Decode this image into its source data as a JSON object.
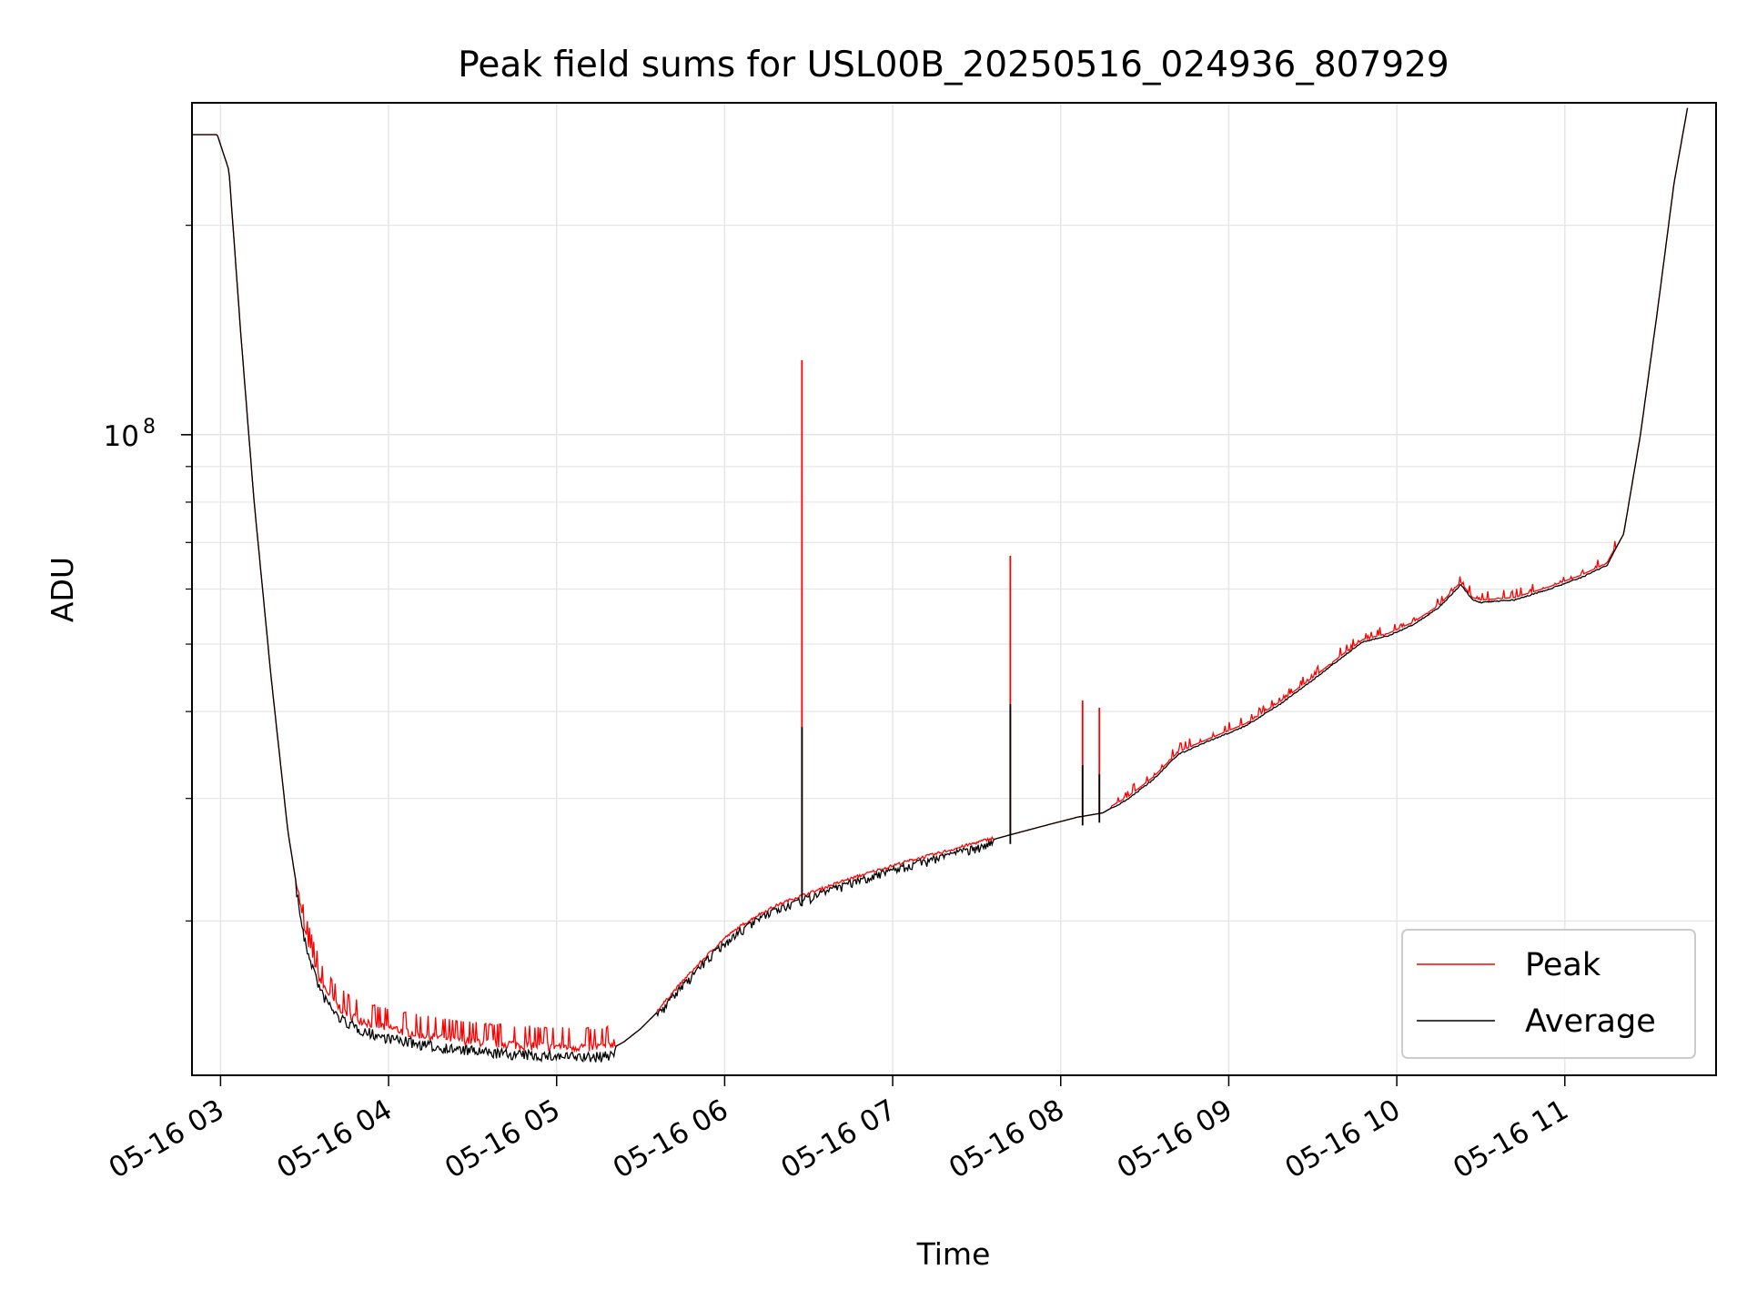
{
  "chart_data": {
    "type": "line",
    "title": "Peak field sums for USL00B_20250516_024936_807929",
    "xlabel": "Time",
    "ylabel": "ADU",
    "y_scale": "log",
    "ylim": [
      12000000,
      300000000
    ],
    "xlim_hours": [
      2.83,
      11.9
    ],
    "grid": true,
    "legend_position": "lower-right",
    "x_ticks": [
      {
        "hour": 3,
        "label": "05-16 03"
      },
      {
        "hour": 4,
        "label": "05-16 04"
      },
      {
        "hour": 5,
        "label": "05-16 05"
      },
      {
        "hour": 6,
        "label": "05-16 06"
      },
      {
        "hour": 7,
        "label": "05-16 07"
      },
      {
        "hour": 8,
        "label": "05-16 08"
      },
      {
        "hour": 9,
        "label": "05-16 09"
      },
      {
        "hour": 10,
        "label": "05-16 10"
      },
      {
        "hour": 11,
        "label": "05-16 11"
      }
    ],
    "y_major_tick": {
      "value": 100000000,
      "label_base": "10",
      "label_exp": "8"
    },
    "y_minor_ticks": [
      20000000,
      30000000,
      40000000,
      50000000,
      60000000,
      70000000,
      80000000,
      90000000,
      200000000
    ],
    "series": [
      {
        "name": "Peak",
        "color": "#ff0000",
        "role": "peak"
      },
      {
        "name": "Average",
        "color": "#000000",
        "role": "average"
      }
    ],
    "average_points": [
      [
        2.83,
        270000000
      ],
      [
        2.98,
        270000000
      ],
      [
        3.05,
        240000000
      ],
      [
        3.12,
        140000000
      ],
      [
        3.2,
        80000000
      ],
      [
        3.3,
        45000000
      ],
      [
        3.4,
        27000000
      ],
      [
        3.5,
        19000000
      ],
      [
        3.6,
        16000000
      ],
      [
        3.7,
        14800000
      ],
      [
        3.8,
        14300000
      ],
      [
        3.9,
        14000000
      ],
      [
        4.0,
        13800000
      ],
      [
        4.2,
        13500000
      ],
      [
        4.4,
        13300000
      ],
      [
        4.6,
        13150000
      ],
      [
        4.8,
        13050000
      ],
      [
        5.0,
        13000000
      ],
      [
        5.2,
        12950000
      ],
      [
        5.3,
        13000000
      ],
      [
        5.4,
        13400000
      ],
      [
        5.5,
        14000000
      ],
      [
        5.6,
        14800000
      ],
      [
        5.7,
        15800000
      ],
      [
        5.8,
        16800000
      ],
      [
        5.9,
        17800000
      ],
      [
        6.0,
        18800000
      ],
      [
        6.1,
        19600000
      ],
      [
        6.2,
        20300000
      ],
      [
        6.3,
        20900000
      ],
      [
        6.4,
        21400000
      ],
      [
        6.5,
        21800000
      ],
      [
        6.7,
        22700000
      ],
      [
        6.9,
        23500000
      ],
      [
        7.1,
        24300000
      ],
      [
        7.3,
        25000000
      ],
      [
        7.5,
        25800000
      ],
      [
        7.7,
        26600000
      ],
      [
        7.9,
        27400000
      ],
      [
        8.1,
        28200000
      ],
      [
        8.25,
        28600000
      ],
      [
        8.4,
        30000000
      ],
      [
        8.55,
        32000000
      ],
      [
        8.7,
        34800000
      ],
      [
        8.9,
        36500000
      ],
      [
        9.1,
        38200000
      ],
      [
        9.3,
        41000000
      ],
      [
        9.5,
        44500000
      ],
      [
        9.7,
        48500000
      ],
      [
        9.8,
        50500000
      ],
      [
        9.95,
        51500000
      ],
      [
        10.1,
        53500000
      ],
      [
        10.25,
        56500000
      ],
      [
        10.38,
        61000000
      ],
      [
        10.45,
        58000000
      ],
      [
        10.5,
        57500000
      ],
      [
        10.7,
        58000000
      ],
      [
        10.9,
        60000000
      ],
      [
        11.1,
        62500000
      ],
      [
        11.25,
        65000000
      ],
      [
        11.35,
        72000000
      ],
      [
        11.45,
        100000000
      ],
      [
        11.55,
        150000000
      ],
      [
        11.65,
        230000000
      ],
      [
        11.73,
        295000000
      ]
    ],
    "peak_spikes": [
      [
        6.46,
        128000000
      ],
      [
        7.7,
        67000000
      ],
      [
        8.13,
        41500000
      ],
      [
        8.23,
        40500000
      ]
    ],
    "average_spikes": [
      [
        6.46,
        38000000
      ],
      [
        7.7,
        41000000
      ],
      [
        8.13,
        33500000
      ],
      [
        8.23,
        32500000
      ]
    ]
  }
}
